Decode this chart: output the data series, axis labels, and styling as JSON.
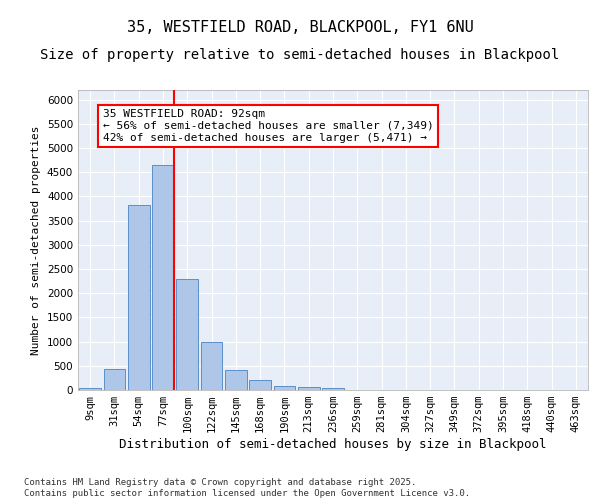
{
  "title_line1": "35, WESTFIELD ROAD, BLACKPOOL, FY1 6NU",
  "title_line2": "Size of property relative to semi-detached houses in Blackpool",
  "xlabel": "Distribution of semi-detached houses by size in Blackpool",
  "ylabel": "Number of semi-detached properties",
  "categories": [
    "9sqm",
    "31sqm",
    "54sqm",
    "77sqm",
    "100sqm",
    "122sqm",
    "145sqm",
    "168sqm",
    "190sqm",
    "213sqm",
    "236sqm",
    "259sqm",
    "281sqm",
    "304sqm",
    "327sqm",
    "349sqm",
    "372sqm",
    "395sqm",
    "418sqm",
    "440sqm",
    "463sqm"
  ],
  "bar_heights": [
    50,
    430,
    3820,
    4660,
    2300,
    1000,
    410,
    200,
    90,
    70,
    50,
    0,
    0,
    0,
    0,
    0,
    0,
    0,
    0,
    0,
    0
  ],
  "bar_color": "#aec6e8",
  "bar_edgecolor": "#5b8fc9",
  "vline_x_index": 3.45,
  "annotation_text": "35 WESTFIELD ROAD: 92sqm\n← 56% of semi-detached houses are smaller (7,349)\n42% of semi-detached houses are larger (5,471) →",
  "annotation_box_color": "white",
  "annotation_box_edgecolor": "red",
  "vline_color": "red",
  "ylim": [
    0,
    6200
  ],
  "yticks": [
    0,
    500,
    1000,
    1500,
    2000,
    2500,
    3000,
    3500,
    4000,
    4500,
    5000,
    5500,
    6000
  ],
  "background_color": "#e8eef7",
  "footer_line1": "Contains HM Land Registry data © Crown copyright and database right 2025.",
  "footer_line2": "Contains public sector information licensed under the Open Government Licence v3.0.",
  "title_fontsize": 11,
  "subtitle_fontsize": 10,
  "xlabel_fontsize": 9,
  "ylabel_fontsize": 8,
  "tick_fontsize": 7.5,
  "annotation_fontsize": 8,
  "footer_fontsize": 6.5
}
